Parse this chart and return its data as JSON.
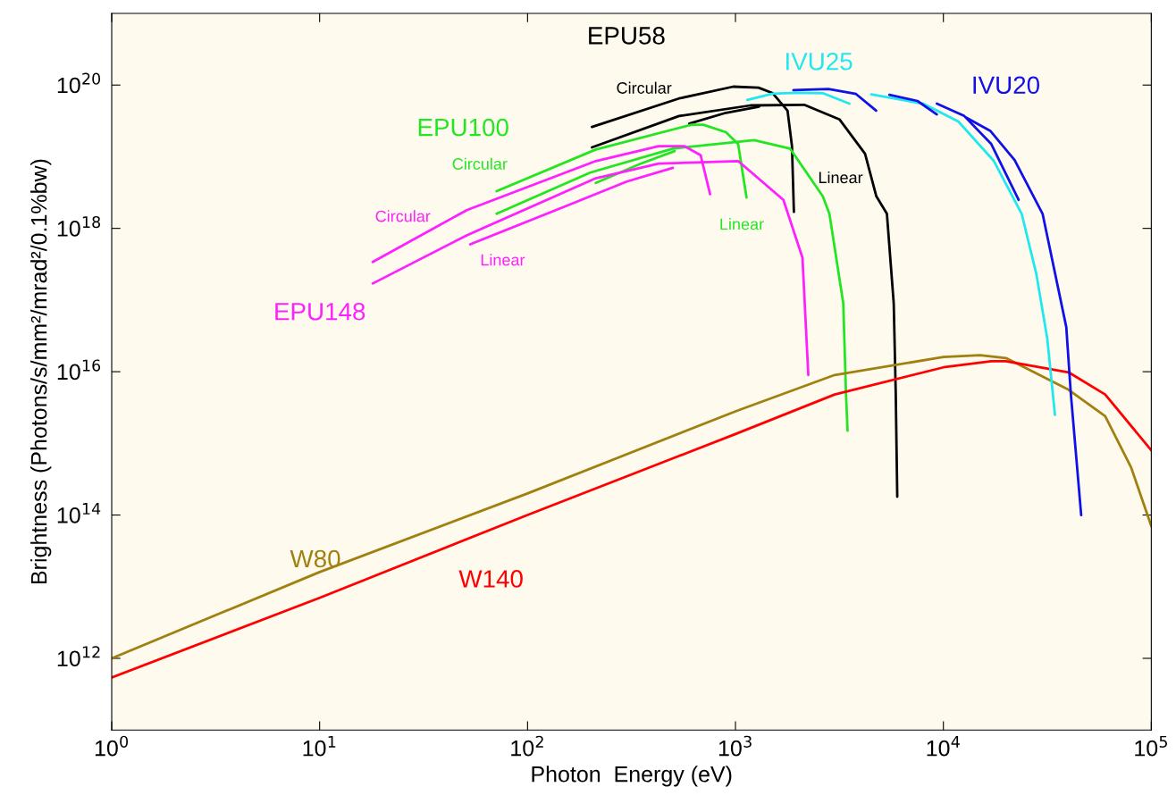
{
  "chart_data": {
    "type": "line",
    "log": "xy",
    "xlabel": "Photon  Energy (eV)",
    "ylabel": "Brightness (Photons/s/mm²/mrad²/0.1%bw)",
    "xlim": [
      1,
      100000
    ],
    "ylim": [
      100000000000.0,
      1e+21
    ],
    "xticks": [
      {
        "value": 1,
        "label": "10$^{0}$"
      },
      {
        "value": 10,
        "label": "10$^{1}$"
      },
      {
        "value": 100,
        "label": "10$^{2}$"
      },
      {
        "value": 1000,
        "label": "10$^{3}$"
      },
      {
        "value": 10000,
        "label": "10$^{4}$"
      },
      {
        "value": 100000,
        "label": "10$^{5}$"
      }
    ],
    "yticks": [
      {
        "value": 1000000000000.0,
        "label": "10$^{12}$"
      },
      {
        "value": 100000000000000.0,
        "label": "10$^{14}$"
      },
      {
        "value": 1e+16,
        "label": "10$^{16}$"
      },
      {
        "value": 1e+18,
        "label": "10$^{18}$"
      },
      {
        "value": 1e+20,
        "label": "10$^{20}$"
      }
    ],
    "series": [
      {
        "color": "#000000",
        "x": [
          204,
          535,
          975,
          1290,
          1510,
          1780,
          1870,
          1910
        ],
        "values": [
          2.6e+19,
          6.5e+19,
          9.5e+19,
          9.2e+19,
          7.7e+19,
          4.4e+19,
          1.4e+19,
          1.7e+18
        ]
      },
      {
        "color": "#000000",
        "x": [
          204,
          535,
          1180,
          2140,
          3170,
          4200,
          4760,
          5350,
          5770,
          5900,
          6000
        ],
        "values": [
          1.35e+19,
          3.7e+19,
          5.2e+19,
          5.3e+19,
          3.3e+19,
          1.1e+19,
          2.8e+18,
          1.6e+18,
          9e+16,
          5000000000000000.0,
          180000000000000.0
        ]
      },
      {
        "color": "#000000",
        "x": [
          600,
          900,
          1300
        ],
        "values": [
          2.9e+19,
          4.1e+19,
          5e+19
        ]
      },
      {
        "color": "#20e8f0",
        "x": [
          1140,
          1510,
          2000,
          2630,
          3530
        ],
        "values": [
          6.2e+19,
          7.6e+19,
          7.8e+19,
          7.7e+19,
          5.5e+19
        ]
      },
      {
        "color": "#1010e8",
        "x": [
          1900,
          2800,
          3800,
          4750
        ],
        "values": [
          8.5e+19,
          8.8e+19,
          7.5e+19,
          4.4e+19
        ]
      },
      {
        "color": "#22e622",
        "x": [
          71,
          213,
          615,
          700,
          900,
          1030,
          1130
        ],
        "values": [
          3.3e+18,
          1.26e+19,
          2.8e+19,
          2.8e+19,
          2.2e+19,
          1.5e+19,
          2.7e+18
        ]
      },
      {
        "color": "#22e622",
        "x": [
          71,
          200,
          500,
          1230,
          1830,
          2630,
          2830,
          3300,
          3400,
          3460
        ],
        "values": [
          1.6e+18,
          6e+18,
          1.3e+19,
          1.7e+19,
          1.3e+19,
          2.8e+18,
          1.6e+18,
          9e+16,
          5000000000000000.0,
          1500000000000000.0
        ]
      },
      {
        "color": "#22e622",
        "x": [
          213,
          350,
          510
        ],
        "values": [
          4.3e+18,
          8e+18,
          1.2e+19
        ]
      },
      {
        "color": "#ff20ff",
        "x": [
          18,
          51,
          213,
          427,
          570,
          680,
          755
        ],
        "values": [
          3.4e+17,
          1.8e+18,
          8.7e+18,
          1.4e+19,
          1.4e+19,
          1.05e+19,
          3e+18
        ]
      },
      {
        "color": "#ff20ff",
        "x": [
          18,
          51,
          213,
          427,
          1030,
          1700,
          2100,
          2240
        ],
        "values": [
          1.7e+17,
          8e+17,
          5e+18,
          8e+18,
          8.7e+18,
          2.5e+18,
          3.9e+17,
          9000000000000000.0
        ]
      },
      {
        "color": "#ff20ff",
        "x": [
          53,
          150,
          300,
          500
        ],
        "values": [
          6e+17,
          2e+18,
          4.5e+18,
          7e+18
        ]
      },
      {
        "color": "#a08010",
        "x": [
          1,
          10,
          100,
          1000,
          3000,
          10000,
          15000,
          20000,
          40000,
          60000,
          80000,
          100000
        ],
        "values": [
          1000000000000.0,
          16000000000000.0,
          200000000000000.0,
          2800000000000000.0,
          9000000000000000.0,
          1.6e+16,
          1.7e+16,
          1.55e+16,
          5600000000000000.0,
          2400000000000000.0,
          460000000000000.0,
          70000000000000.0
        ]
      },
      {
        "color": "#ff0000",
        "x": [
          1,
          10,
          100,
          1000,
          3000,
          10000,
          17000,
          20000,
          40000,
          60000,
          100000
        ],
        "values": [
          540000000000.0,
          7000000000000.0,
          100000000000000.0,
          1350000000000000.0,
          4800000000000000.0,
          1.15e+16,
          1.4e+16,
          1.4e+16,
          9800000000000000.0,
          4800000000000000.0,
          800000000000000.0
        ]
      },
      {
        "color": "#20e8f0",
        "x": [
          4500,
          8000,
          11800,
          17500,
          23800,
          28000,
          31600,
          34400
        ],
        "values": [
          7.4e+19,
          5.5e+19,
          3.1e+19,
          8.7e+18,
          1.6e+18,
          2.3e+17,
          2.9e+16,
          2500000000000000.0
        ]
      },
      {
        "color": "#1010e8",
        "x": [
          5500,
          7500,
          9300
        ],
        "values": [
          7.3e+19,
          6e+19,
          3.9e+19
        ]
      },
      {
        "color": "#1010e8",
        "x": [
          9300,
          12600,
          17000,
          23000
        ],
        "values": [
          5.5e+19,
          3.7e+19,
          1.5e+19,
          2.5e+18
        ]
      },
      {
        "color": "#1010e8",
        "x": [
          12900,
          16800,
          22000,
          30000,
          39000,
          41000,
          46000
        ],
        "values": [
          3.5e+19,
          2.3e+19,
          9e+18,
          1.6e+18,
          4.2e+16,
          5000000000000000.0,
          100000000000000.0
        ]
      }
    ],
    "annotations": [
      "EPU58",
      "Circular",
      "Linear",
      "IVU25",
      "IVU20",
      "EPU100",
      "Circular",
      "Linear",
      "Circular",
      "Linear",
      "EPU148",
      "W80",
      "W140"
    ]
  }
}
